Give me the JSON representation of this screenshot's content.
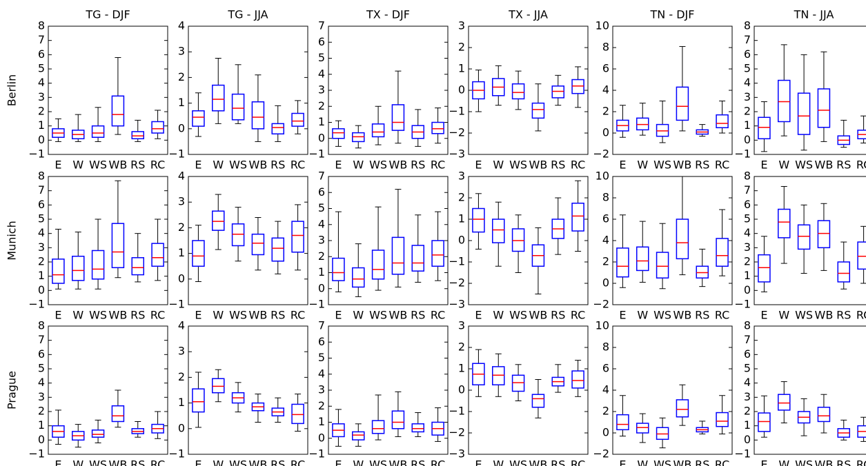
{
  "chart_data": [
    {
      "type": "box",
      "title": "TG - DJF",
      "ylabel": "Berlin",
      "categories": [
        "E",
        "W",
        "WS",
        "WB",
        "RS",
        "RC"
      ],
      "values": [
        [
          -0.1,
          0.2,
          0.5,
          0.8,
          1.5
        ],
        [
          -0.1,
          0.1,
          0.4,
          0.7,
          1.8
        ],
        [
          -0.1,
          0.2,
          0.5,
          1.0,
          2.3
        ],
        [
          0.4,
          1.0,
          1.8,
          3.1,
          5.8
        ],
        [
          -0.1,
          0.1,
          0.3,
          0.6,
          1.4
        ],
        [
          0.1,
          0.5,
          0.8,
          1.3,
          2.1
        ]
      ],
      "ylim": [
        -1,
        8
      ],
      "yticks": [
        {
          "value": -1,
          "label": "−1"
        },
        0,
        1,
        2,
        3,
        4,
        5,
        6,
        7,
        8
      ],
      "color": "#0000ff",
      "median_color": "#ff0000",
      "whisker_color": "#000000"
    },
    {
      "type": "box",
      "title": "TG - JJA",
      "categories": [
        "E",
        "W",
        "WS",
        "WB",
        "RS",
        "RC"
      ],
      "values": [
        [
          -0.3,
          0.1,
          0.45,
          0.7,
          1.4
        ],
        [
          0.2,
          0.7,
          1.15,
          1.7,
          2.75
        ],
        [
          0.2,
          0.35,
          0.8,
          1.35,
          2.5
        ],
        [
          -0.5,
          0,
          0.45,
          1.05,
          2.1
        ],
        [
          -0.5,
          -0.2,
          0.05,
          0.2,
          0.9
        ],
        [
          -0.2,
          0.1,
          0.3,
          0.6,
          1.1
        ]
      ],
      "ylim": [
        -1,
        4
      ],
      "yticks": [
        {
          "value": -1,
          "label": "−1"
        },
        0,
        1,
        2,
        3,
        4
      ],
      "color": "#0000ff",
      "median_color": "#ff0000",
      "whisker_color": "#000000"
    },
    {
      "type": "box",
      "title": "TX - DJF",
      "categories": [
        "E",
        "W",
        "WS",
        "WB",
        "RS",
        "RC"
      ],
      "values": [
        [
          -0.5,
          0,
          0.35,
          0.6,
          1.1
        ],
        [
          -0.6,
          -0.2,
          0.1,
          0.35,
          0.8
        ],
        [
          -0.4,
          0.1,
          0.4,
          0.9,
          2.0
        ],
        [
          -0.3,
          0.5,
          1.0,
          2.1,
          4.2
        ],
        [
          -0.5,
          0,
          0.4,
          0.8,
          1.8
        ],
        [
          -0.3,
          0.3,
          0.6,
          1.0,
          1.9
        ]
      ],
      "ylim": [
        -1,
        7
      ],
      "yticks": [
        {
          "value": -1,
          "label": "−1"
        },
        0,
        1,
        2,
        3,
        4,
        5,
        6,
        7
      ],
      "color": "#0000ff",
      "median_color": "#ff0000",
      "whisker_color": "#000000"
    },
    {
      "type": "box",
      "title": "TX - JJA",
      "categories": [
        "E",
        "W",
        "WS",
        "WB",
        "RS",
        "RC"
      ],
      "values": [
        [
          -1.0,
          -0.4,
          0,
          0.4,
          0.95
        ],
        [
          -0.7,
          -0.25,
          0.15,
          0.55,
          1.15
        ],
        [
          -0.9,
          -0.4,
          -0.1,
          0.3,
          0.9
        ],
        [
          -1.9,
          -1.3,
          -0.9,
          -0.6,
          0.3
        ],
        [
          -0.7,
          -0.35,
          -0.05,
          0.2,
          0.7
        ],
        [
          -0.8,
          -0.15,
          0.2,
          0.5,
          1.1
        ]
      ],
      "ylim": [
        -3,
        3
      ],
      "yticks": [
        {
          "value": -3,
          "label": "−3"
        },
        {
          "value": -2,
          "label": "−2"
        },
        {
          "value": -1,
          "label": "−1"
        },
        0,
        1,
        2,
        3
      ],
      "color": "#0000ff",
      "median_color": "#ff0000",
      "whisker_color": "#000000"
    },
    {
      "type": "box",
      "title": "TN - DJF",
      "categories": [
        "E",
        "W",
        "WS",
        "WB",
        "RS",
        "RC"
      ],
      "values": [
        [
          -0.4,
          0.2,
          0.7,
          1.2,
          2.6
        ],
        [
          -0.2,
          0.3,
          0.8,
          1.4,
          2.8
        ],
        [
          -0.9,
          -0.3,
          0.2,
          0.8,
          3.0
        ],
        [
          0.2,
          1.2,
          2.5,
          4.3,
          8.1
        ],
        [
          -0.3,
          -0.1,
          0.1,
          0.3,
          0.8
        ],
        [
          0,
          0.5,
          0.9,
          1.7,
          3.0
        ]
      ],
      "ylim": [
        -2,
        10
      ],
      "yticks": [
        {
          "value": -2,
          "label": "−2"
        },
        0,
        2,
        4,
        6,
        8,
        10
      ],
      "color": "#0000ff",
      "median_color": "#ff0000",
      "whisker_color": "#000000"
    },
    {
      "type": "box",
      "title": "TN - JJA",
      "categories": [
        "E",
        "W",
        "WS",
        "WB",
        "RS",
        "RC"
      ],
      "values": [
        [
          -0.8,
          0.1,
          0.9,
          1.6,
          2.7
        ],
        [
          0.3,
          1.3,
          2.7,
          4.2,
          6.7
        ],
        [
          -0.7,
          0.4,
          1.7,
          3.3,
          6.0
        ],
        [
          -0.1,
          0.9,
          2.1,
          3.6,
          6.2
        ],
        [
          -0.5,
          -0.3,
          0,
          0.3,
          1.4
        ],
        [
          -0.2,
          0.1,
          0.4,
          0.7,
          1.7
        ]
      ],
      "ylim": [
        -1,
        8
      ],
      "yticks": [
        {
          "value": -1,
          "label": "−1"
        },
        0,
        1,
        2,
        3,
        4,
        5,
        6,
        7,
        8
      ],
      "color": "#0000ff",
      "median_color": "#ff0000",
      "whisker_color": "#000000"
    },
    {
      "type": "box",
      "ylabel": "Munich",
      "categories": [
        "E",
        "W",
        "WS",
        "WB",
        "RS",
        "RC"
      ],
      "values": [
        [
          0.1,
          0.5,
          1.1,
          2.2,
          4.3
        ],
        [
          0.1,
          0.7,
          1.4,
          2.4,
          4.1
        ],
        [
          0.1,
          0.8,
          1.5,
          2.8,
          5.0
        ],
        [
          0.9,
          1.6,
          2.7,
          4.7,
          7.7
        ],
        [
          0.6,
          1.1,
          1.6,
          2.3,
          4.0
        ],
        [
          0.7,
          1.7,
          2.3,
          3.3,
          5.0
        ]
      ],
      "ylim": [
        -1,
        8
      ],
      "yticks": [
        {
          "value": -1,
          "label": "−1"
        },
        0,
        1,
        2,
        3,
        4,
        5,
        6,
        7,
        8
      ],
      "color": "#0000ff",
      "median_color": "#ff0000",
      "whisker_color": "#000000"
    },
    {
      "type": "box",
      "categories": [
        "E",
        "W",
        "WS",
        "WB",
        "RS",
        "RC"
      ],
      "values": [
        [
          -0.1,
          0.5,
          0.9,
          1.5,
          2.1
        ],
        [
          1.15,
          1.9,
          2.25,
          2.65,
          3.3
        ],
        [
          0.7,
          1.3,
          1.75,
          2.15,
          2.8
        ],
        [
          0.35,
          0.95,
          1.4,
          1.75,
          2.4
        ],
        [
          0.2,
          0.7,
          1.2,
          1.6,
          2.25
        ],
        [
          0.35,
          1.05,
          1.7,
          2.25,
          2.9
        ]
      ],
      "ylim": [
        -1,
        4
      ],
      "yticks": [
        {
          "value": -1,
          "label": "−1"
        },
        0,
        1,
        2,
        3,
        4
      ],
      "color": "#0000ff",
      "median_color": "#ff0000",
      "whisker_color": "#000000"
    },
    {
      "type": "box",
      "categories": [
        "E",
        "W",
        "WS",
        "WB",
        "RS",
        "RC"
      ],
      "values": [
        [
          -0.2,
          0.5,
          1.0,
          1.9,
          4.8
        ],
        [
          -0.5,
          0.1,
          0.6,
          1.3,
          2.8
        ],
        [
          -0.1,
          0.6,
          1.2,
          2.4,
          5.1
        ],
        [
          0.1,
          0.9,
          1.6,
          3.2,
          6.2
        ],
        [
          0.4,
          1.1,
          1.6,
          2.7,
          4.6
        ],
        [
          0.5,
          1.4,
          2.1,
          3.0,
          4.8
        ]
      ],
      "ylim": [
        -1,
        7
      ],
      "yticks": [
        {
          "value": -1,
          "label": "−1"
        },
        0,
        1,
        2,
        3,
        4,
        5,
        6,
        7
      ],
      "color": "#0000ff",
      "median_color": "#ff0000",
      "whisker_color": "#000000"
    },
    {
      "type": "box",
      "categories": [
        "E",
        "W",
        "WS",
        "WB",
        "RS",
        "RC"
      ],
      "values": [
        [
          -0.4,
          0.4,
          1.0,
          1.5,
          2.2
        ],
        [
          -1.2,
          -0.1,
          0.5,
          1.0,
          1.8
        ],
        [
          -1.5,
          -0.5,
          0.0,
          0.55,
          1.2
        ],
        [
          -2.5,
          -1.2,
          -0.7,
          -0.2,
          0.6
        ],
        [
          -0.65,
          0.1,
          0.55,
          1.0,
          2.0
        ],
        [
          -0.5,
          0.45,
          1.15,
          1.75,
          2.8
        ]
      ],
      "ylim": [
        -3,
        3
      ],
      "yticks": [
        {
          "value": -3,
          "label": "−3"
        },
        {
          "value": -2,
          "label": "−2"
        },
        {
          "value": -1,
          "label": "−1"
        },
        0,
        1,
        2,
        3
      ],
      "color": "#0000ff",
      "median_color": "#ff0000",
      "whisker_color": "#000000"
    },
    {
      "type": "box",
      "categories": [
        "E",
        "W",
        "WS",
        "WB",
        "RS",
        "RC"
      ],
      "values": [
        [
          -0.4,
          0.6,
          1.6,
          3.3,
          6.4
        ],
        [
          0.1,
          1.2,
          2.1,
          3.4,
          5.8
        ],
        [
          -0.5,
          0.5,
          1.6,
          2.9,
          5.6
        ],
        [
          0.8,
          2.3,
          3.8,
          6.0,
          10
        ],
        [
          -0.3,
          0.5,
          1.0,
          1.6,
          3.2
        ],
        [
          0.7,
          1.6,
          2.6,
          4.2,
          6.9
        ]
      ],
      "ylim": [
        -2,
        10
      ],
      "yticks": [
        {
          "value": -2,
          "label": "−2"
        },
        0,
        2,
        4,
        6,
        8,
        10
      ],
      "color": "#0000ff",
      "median_color": "#ff0000",
      "whisker_color": "#000000"
    },
    {
      "type": "box",
      "categories": [
        "E",
        "W",
        "WS",
        "WB",
        "RS",
        "RC"
      ],
      "values": [
        [
          -0.1,
          0.6,
          1.6,
          2.5,
          3.8
        ],
        [
          1.9,
          3.7,
          4.8,
          5.7,
          7.3
        ],
        [
          1.2,
          2.9,
          3.8,
          4.6,
          6.0
        ],
        [
          1.4,
          3.0,
          4.0,
          4.9,
          6.1
        ],
        [
          0.1,
          0.6,
          1.2,
          2.0,
          3.4
        ],
        [
          0.5,
          1.5,
          2.4,
          3.4,
          4.5
        ]
      ],
      "ylim": [
        -1,
        8
      ],
      "yticks": [
        {
          "value": -1,
          "label": "−1"
        },
        0,
        1,
        2,
        3,
        4,
        5,
        6,
        7,
        8
      ],
      "color": "#0000ff",
      "median_color": "#ff0000",
      "whisker_color": "#000000"
    },
    {
      "type": "box",
      "ylabel": "Prague",
      "categories": [
        "E",
        "W",
        "WS",
        "WB",
        "RS",
        "RC"
      ],
      "values": [
        [
          -0.3,
          0.2,
          0.6,
          1.0,
          2.1
        ],
        [
          -0.5,
          0.0,
          0.3,
          0.6,
          1.1
        ],
        [
          -0.2,
          0.2,
          0.4,
          0.7,
          1.4
        ],
        [
          0.9,
          1.3,
          1.7,
          2.4,
          3.5
        ],
        [
          0.2,
          0.45,
          0.6,
          0.8,
          1.3
        ],
        [
          0.1,
          0.5,
          0.8,
          1.1,
          2.0
        ]
      ],
      "ylim": [
        -1,
        8
      ],
      "yticks": [
        {
          "value": -1,
          "label": "−1"
        },
        0,
        1,
        2,
        3,
        4,
        5,
        6,
        7,
        8
      ],
      "color": "#0000ff",
      "median_color": "#ff0000",
      "whisker_color": "#000000"
    },
    {
      "type": "box",
      "categories": [
        "E",
        "W",
        "WS",
        "WB",
        "RS",
        "RC"
      ],
      "values": [
        [
          0.05,
          0.65,
          1.05,
          1.55,
          2.2
        ],
        [
          1.05,
          1.4,
          1.65,
          1.95,
          2.3
        ],
        [
          0.65,
          1.0,
          1.2,
          1.4,
          1.8
        ],
        [
          0.25,
          0.7,
          0.85,
          1.0,
          1.35
        ],
        [
          0.25,
          0.5,
          0.65,
          0.8,
          1.2
        ],
        [
          -0.1,
          0.2,
          0.55,
          0.95,
          1.35
        ]
      ],
      "ylim": [
        -1,
        4
      ],
      "yticks": [
        {
          "value": -1,
          "label": "−1"
        },
        0,
        1,
        2,
        3,
        4
      ],
      "color": "#0000ff",
      "median_color": "#ff0000",
      "whisker_color": "#000000"
    },
    {
      "type": "box",
      "categories": [
        "E",
        "W",
        "WS",
        "WB",
        "RS",
        "RC"
      ],
      "values": [
        [
          -0.5,
          0.1,
          0.5,
          0.9,
          1.8
        ],
        [
          -0.5,
          -0.1,
          0.2,
          0.4,
          0.9
        ],
        [
          -0.1,
          0.3,
          0.6,
          1.1,
          2.7
        ],
        [
          0.1,
          0.6,
          1.0,
          1.7,
          2.9
        ],
        [
          0.1,
          0.4,
          0.6,
          0.9,
          1.6
        ],
        [
          -0.2,
          0.2,
          0.6,
          1.0,
          1.9
        ]
      ],
      "ylim": [
        -1,
        7
      ],
      "yticks": [
        {
          "value": -1,
          "label": "−1"
        },
        0,
        1,
        2,
        3,
        4,
        5,
        6,
        7
      ],
      "color": "#0000ff",
      "median_color": "#ff0000",
      "whisker_color": "#000000"
    },
    {
      "type": "box",
      "categories": [
        "E",
        "W",
        "WS",
        "WB",
        "RS",
        "RC"
      ],
      "values": [
        [
          -0.3,
          0.25,
          0.75,
          1.25,
          1.9
        ],
        [
          -0.3,
          0.25,
          0.7,
          1.1,
          1.7
        ],
        [
          -0.5,
          -0.05,
          0.35,
          0.7,
          1.2
        ],
        [
          -1.3,
          -0.8,
          -0.4,
          -0.2,
          0.5
        ],
        [
          -0.1,
          0.2,
          0.4,
          0.6,
          1.2
        ],
        [
          -0.3,
          0.1,
          0.45,
          0.9,
          1.4
        ]
      ],
      "ylim": [
        -3,
        3
      ],
      "yticks": [
        {
          "value": -3,
          "label": "−3"
        },
        {
          "value": -2,
          "label": "−2"
        },
        {
          "value": -1,
          "label": "−1"
        },
        0,
        1,
        2,
        3
      ],
      "color": "#0000ff",
      "median_color": "#ff0000",
      "whisker_color": "#000000"
    },
    {
      "type": "box",
      "categories": [
        "E",
        "W",
        "WS",
        "WB",
        "RS",
        "RC"
      ],
      "values": [
        [
          -0.3,
          0.3,
          0.8,
          1.7,
          3.5
        ],
        [
          -0.9,
          0.0,
          0.5,
          0.9,
          1.8
        ],
        [
          -1.4,
          -0.6,
          -0.1,
          0.5,
          1.4
        ],
        [
          0.7,
          1.5,
          2.2,
          3.1,
          4.5
        ],
        [
          -0.1,
          0.1,
          0.3,
          0.5,
          1.1
        ],
        [
          -0.1,
          0.6,
          1.1,
          1.9,
          3.5
        ]
      ],
      "ylim": [
        -2,
        10
      ],
      "yticks": [
        {
          "value": -2,
          "label": "−2"
        },
        0,
        2,
        4,
        6,
        8,
        10
      ],
      "color": "#0000ff",
      "median_color": "#ff0000",
      "whisker_color": "#000000"
    },
    {
      "type": "box",
      "categories": [
        "E",
        "W",
        "WS",
        "WB",
        "RS",
        "RC"
      ],
      "values": [
        [
          0.2,
          0.6,
          1.3,
          1.9,
          3.1
        ],
        [
          1.2,
          2.1,
          2.6,
          3.2,
          4.1
        ],
        [
          0.3,
          1.2,
          1.6,
          2.0,
          2.9
        ],
        [
          0.5,
          1.3,
          1.7,
          2.3,
          3.2
        ],
        [
          0.0,
          0.2,
          0.5,
          0.8,
          1.4
        ],
        [
          -0.1,
          0.2,
          0.6,
          1.0,
          1.6
        ]
      ],
      "ylim": [
        -1,
        8
      ],
      "yticks": [
        {
          "value": -1,
          "label": "−1"
        },
        0,
        1,
        2,
        3,
        4,
        5,
        6,
        7,
        8
      ],
      "color": "#0000ff",
      "median_color": "#ff0000",
      "whisker_color": "#000000"
    }
  ]
}
